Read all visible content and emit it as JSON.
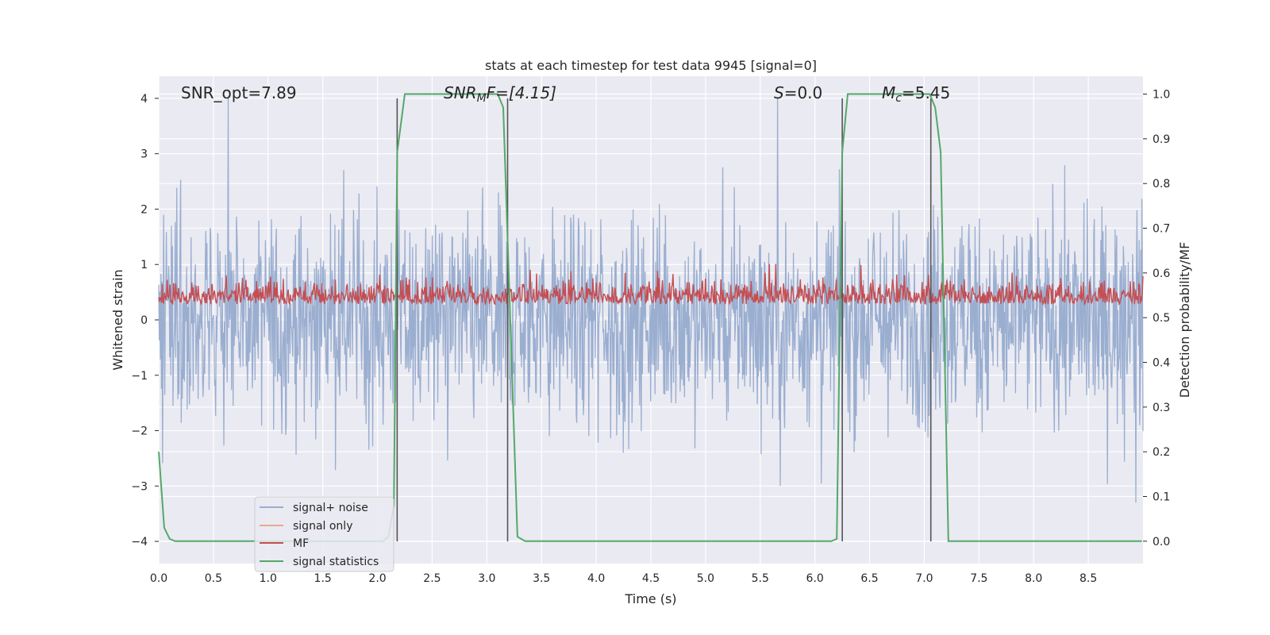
{
  "chart_data": {
    "type": "line",
    "title": "stats at each timestep for test data 9945 [signal=0]",
    "xlabel": "Time (s)",
    "ylabel_left": "Whitened strain",
    "ylabel_right": "Detection probability/MF",
    "xlim": [
      0.0,
      9.0
    ],
    "ylim_left": [
      -4.4,
      4.4
    ],
    "ylim_right": [
      -0.05,
      1.04
    ],
    "x_ticks": [
      "0.0",
      "0.5",
      "1.0",
      "1.5",
      "2.0",
      "2.5",
      "3.0",
      "3.5",
      "4.0",
      "4.5",
      "5.0",
      "5.5",
      "6.0",
      "6.5",
      "7.0",
      "7.5",
      "8.0",
      "8.5"
    ],
    "y_left_ticks": [
      "−4",
      "−3",
      "−2",
      "−1",
      "0",
      "1",
      "2",
      "3",
      "4"
    ],
    "y_right_ticks": [
      "0.0",
      "0.1",
      "0.2",
      "0.3",
      "0.4",
      "0.5",
      "0.6",
      "0.7",
      "0.8",
      "0.9",
      "1.0"
    ],
    "annotations": [
      {
        "text": "SNR_opt=7.89",
        "x": 0.2
      },
      {
        "text_html": "SNR_MF=[4.15]",
        "x": 2.6
      },
      {
        "text_html": "S=0.0",
        "x": 5.6
      },
      {
        "text_html": "M_c=5.45",
        "x": 6.65
      }
    ],
    "annotation_text": {
      "snr_opt": "SNR_opt=7.89",
      "snr_mf_main": "SNR",
      "snr_mf_sub": "M",
      "snr_mf_rest": "F=[4.15]",
      "s_label": "S",
      "s_value": "=0.0",
      "mc_main": "M",
      "mc_sub": "c",
      "mc_value": "=5.45"
    },
    "vertical_lines_x": [
      2.18,
      3.19,
      6.25,
      7.06
    ],
    "series": [
      {
        "name": "signal+ noise",
        "color": "#9aaed0",
        "style": "noise",
        "amplitude_range": [
          -3.3,
          4.0
        ]
      },
      {
        "name": "signal only",
        "color": "#e8a98f",
        "style": "flat",
        "values": []
      },
      {
        "name": "MF",
        "color": "#c44e52",
        "style": "noise",
        "amplitude_range": [
          0.0,
          1.0
        ]
      },
      {
        "name": "signal statistics",
        "color": "#55a868",
        "style": "step",
        "x": [
          0.0,
          0.05,
          0.1,
          0.15,
          0.2,
          2.05,
          2.1,
          2.15,
          2.18,
          2.25,
          3.1,
          3.15,
          3.2,
          3.28,
          3.35,
          6.15,
          6.2,
          6.25,
          6.3,
          7.0,
          7.05,
          7.1,
          7.15,
          7.22,
          8.99
        ],
        "y": [
          0.2,
          0.03,
          0.005,
          0.0,
          0.0,
          0.0,
          0.01,
          0.08,
          0.87,
          1.0,
          1.0,
          0.97,
          0.6,
          0.01,
          0.0,
          0.0,
          0.005,
          0.87,
          1.0,
          1.0,
          1.0,
          0.97,
          0.87,
          0.0,
          0.0
        ]
      }
    ],
    "legend": {
      "position": "lower-left",
      "entries": [
        "signal+ noise",
        "signal only",
        "MF",
        "signal statistics"
      ]
    },
    "grid": true
  },
  "colors": {
    "axes_bg": "#eaeaf2",
    "grid": "#ffffff",
    "noise": "#9aaed0",
    "signal_only": "#e8a98f",
    "mf": "#c44e52",
    "stat": "#55a868",
    "vline": "#555555"
  }
}
